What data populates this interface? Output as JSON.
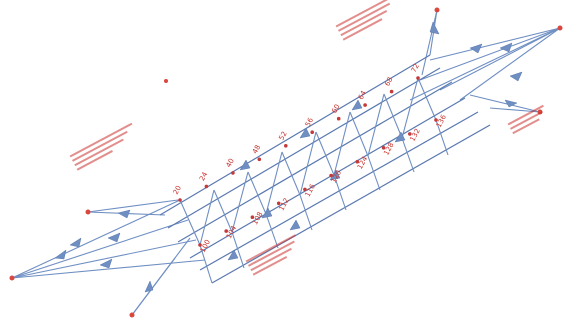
{
  "diagram": {
    "title": "",
    "nodes_upper": [
      "20",
      "24",
      "40",
      "48",
      "52",
      "56",
      "60",
      "64",
      "68",
      "72"
    ],
    "nodes_lower": [
      "100",
      "104",
      "108",
      "112",
      "116",
      "120",
      "124",
      "128",
      "132",
      "136"
    ],
    "colors": {
      "line": "#6f8fc3",
      "label": "#c8322d",
      "node": "#c43a3a"
    }
  }
}
